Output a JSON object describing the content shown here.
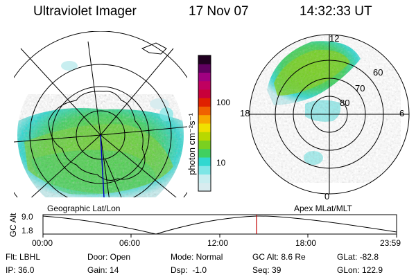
{
  "header": {
    "title": "Ultraviolet Imager",
    "date": "17 Nov 07",
    "time": "14:32:33 UT"
  },
  "colorbar": {
    "label": "photon cm⁻²s⁻¹",
    "scale": "log",
    "ticks": [
      "100",
      "10"
    ],
    "colors": [
      "#d8ecef",
      "#c8eef0",
      "#7ee6e6",
      "#30d8d0",
      "#40d060",
      "#7ad020",
      "#b8d800",
      "#f0e000",
      "#f8a800",
      "#f06000",
      "#e02000",
      "#c8003a",
      "#c00060",
      "#a00080",
      "#600060",
      "#200020"
    ]
  },
  "maps": {
    "left_label": "Geographic Lat/Lon",
    "right_label": "Apex MLat/MLT",
    "right_mlt": [
      "12",
      "18",
      "6",
      "0"
    ],
    "right_mlat": [
      "60",
      "70",
      "80"
    ]
  },
  "altitude_plot": {
    "ylabel": "GC Alt",
    "yticks": [
      "9.0",
      "1.8"
    ],
    "xticks": [
      "00:00",
      "06:00",
      "12:00",
      "18:00",
      "23:59"
    ],
    "marker_time": "14:32:33"
  },
  "info": {
    "flt": "Flt: LBHL",
    "door": "Door: Open",
    "mode": "Mode: Normal",
    "gcalt": "GC Alt: 8.6 Re",
    "glat": "GLat: -82.8",
    "ip": "IP: 36.0",
    "gain": "Gain: 14",
    "dsp": "Dsp:  -1.0",
    "seq": "Seq: 39",
    "glon": "GLon: 122.9"
  }
}
